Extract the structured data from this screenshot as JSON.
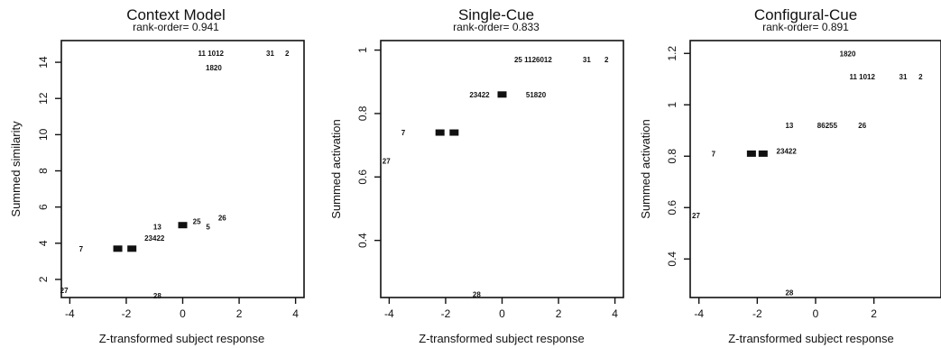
{
  "chart_data": [
    {
      "type": "scatter",
      "title": "Context Model",
      "subtitle": "rank-order= 0.941",
      "xlabel": "Z-transformed subject response",
      "ylabel": "Summed similarity",
      "xlim": [
        -4.3,
        4.3
      ],
      "ylim": [
        1.0,
        15.2
      ],
      "xticks": [
        -4,
        -2,
        0,
        2,
        4
      ],
      "yticks": [
        2,
        4,
        6,
        8,
        10,
        12,
        14
      ],
      "points": [
        {
          "label": "27",
          "x": -4.2,
          "y": 1.4
        },
        {
          "label": "7",
          "x": -3.6,
          "y": 3.7
        },
        {
          "label": "",
          "x": -2.3,
          "y": 3.7
        },
        {
          "label": "",
          "x": -1.8,
          "y": 3.7
        },
        {
          "label": "23422",
          "x": -1.0,
          "y": 4.3
        },
        {
          "label": "13",
          "x": -0.9,
          "y": 4.9
        },
        {
          "label": "",
          "x": 0.0,
          "y": 5.0
        },
        {
          "label": "25",
          "x": 0.5,
          "y": 5.2
        },
        {
          "label": "5",
          "x": 0.9,
          "y": 4.9
        },
        {
          "label": "26",
          "x": 1.4,
          "y": 5.4
        },
        {
          "label": "28",
          "x": -0.9,
          "y": 1.1
        },
        {
          "label": "11 1012",
          "x": 1.0,
          "y": 14.5
        },
        {
          "label": "31",
          "x": 3.1,
          "y": 14.5
        },
        {
          "label": "2",
          "x": 3.7,
          "y": 14.5
        },
        {
          "label": "1820",
          "x": 1.1,
          "y": 13.7
        }
      ]
    },
    {
      "type": "scatter",
      "title": "Single-Cue",
      "subtitle": "rank-order= 0.833",
      "xlabel": "Z-transformed subject response",
      "ylabel": "Summed activation",
      "xlim": [
        -4.3,
        4.3
      ],
      "ylim": [
        0.22,
        1.03
      ],
      "xticks": [
        -4,
        -2,
        0,
        2,
        4
      ],
      "yticks": [
        0.4,
        0.6,
        0.8,
        1.0
      ],
      "points": [
        {
          "label": "27",
          "x": -4.1,
          "y": 0.65
        },
        {
          "label": "7",
          "x": -3.5,
          "y": 0.74
        },
        {
          "label": "",
          "x": -2.2,
          "y": 0.74
        },
        {
          "label": "",
          "x": -1.7,
          "y": 0.74
        },
        {
          "label": "23422",
          "x": -0.8,
          "y": 0.86
        },
        {
          "label": "",
          "x": 0.0,
          "y": 0.86
        },
        {
          "label": "51820",
          "x": 1.2,
          "y": 0.86
        },
        {
          "label": "25 1126012",
          "x": 1.1,
          "y": 0.97
        },
        {
          "label": "31",
          "x": 3.0,
          "y": 0.97
        },
        {
          "label": "2",
          "x": 3.7,
          "y": 0.97
        },
        {
          "label": "28",
          "x": -0.9,
          "y": 0.23
        }
      ]
    },
    {
      "type": "scatter",
      "title": "Configural-Cue",
      "subtitle": "rank-order= 0.891",
      "xlabel": "Z-transformed subject response",
      "ylabel": "Summed activation",
      "xlim": [
        -4.3,
        4.3
      ],
      "ylim": [
        0.25,
        1.25
      ],
      "xticks": [
        -4,
        -2,
        0,
        2
      ],
      "yticks": [
        0.4,
        0.6,
        0.8,
        1.0,
        1.2
      ],
      "points": [
        {
          "label": "27",
          "x": -4.1,
          "y": 0.57
        },
        {
          "label": "7",
          "x": -3.5,
          "y": 0.81
        },
        {
          "label": "",
          "x": -2.2,
          "y": 0.81
        },
        {
          "label": "",
          "x": -1.8,
          "y": 0.81
        },
        {
          "label": "23422",
          "x": -1.0,
          "y": 0.82
        },
        {
          "label": "13",
          "x": -0.9,
          "y": 0.92
        },
        {
          "label": "86255",
          "x": 0.4,
          "y": 0.92
        },
        {
          "label": "26",
          "x": 1.6,
          "y": 0.92
        },
        {
          "label": "1820",
          "x": 1.1,
          "y": 1.2
        },
        {
          "label": "11 1012",
          "x": 1.6,
          "y": 1.11
        },
        {
          "label": "31",
          "x": 3.0,
          "y": 1.11
        },
        {
          "label": "2",
          "x": 3.6,
          "y": 1.11
        },
        {
          "label": "28",
          "x": -0.9,
          "y": 0.27
        }
      ]
    }
  ]
}
